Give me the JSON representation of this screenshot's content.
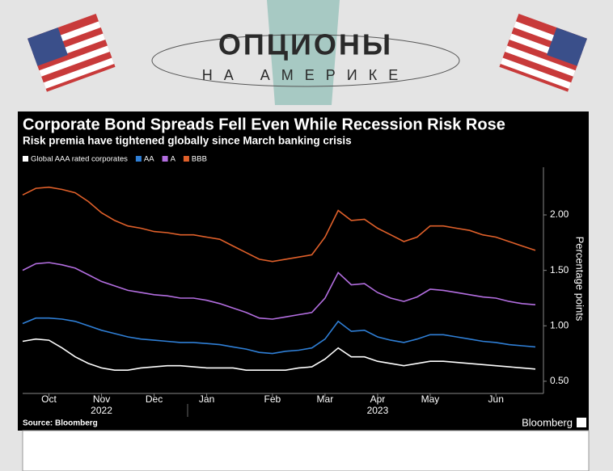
{
  "header": {
    "title": "ОПЦИОНЫ",
    "subtitle": "НА АМЕРИКЕ"
  },
  "chart_data": {
    "type": "line",
    "title": "Corporate Bond Spreads Fell Even While Recession Risk Rose",
    "subtitle": "Risk premia have tightened globally since March banking crisis",
    "y_label": "Percentage points",
    "source": "Source: Bloomberg",
    "brand": "Bloomberg",
    "years": [
      "2022",
      "2023"
    ],
    "categories": [
      null,
      null,
      "Oct",
      null,
      null,
      null,
      "Nov",
      null,
      null,
      null,
      "Dec",
      null,
      null,
      null,
      "Jan",
      null,
      null,
      null,
      null,
      "Feb",
      null,
      null,
      null,
      "Mar",
      null,
      null,
      null,
      "Apr",
      null,
      null,
      null,
      "May",
      null,
      null,
      null,
      null,
      "Jun",
      null,
      null,
      null
    ],
    "series": [
      {
        "name": "Global AAA rated corporates",
        "color": "#ffffff",
        "values": [
          0.86,
          0.88,
          0.87,
          0.8,
          0.72,
          0.66,
          0.62,
          0.6,
          0.6,
          0.62,
          0.63,
          0.64,
          0.64,
          0.63,
          0.62,
          0.62,
          0.62,
          0.6,
          0.6,
          0.6,
          0.6,
          0.62,
          0.63,
          0.7,
          0.8,
          0.72,
          0.72,
          0.68,
          0.66,
          0.64,
          0.66,
          0.68,
          0.68,
          0.67,
          0.66,
          0.65,
          0.64,
          0.63,
          0.62,
          0.61
        ]
      },
      {
        "name": "AA",
        "color": "#2f7fd6",
        "values": [
          1.02,
          1.07,
          1.07,
          1.06,
          1.04,
          1.0,
          0.96,
          0.93,
          0.9,
          0.88,
          0.87,
          0.86,
          0.85,
          0.85,
          0.84,
          0.83,
          0.81,
          0.79,
          0.76,
          0.75,
          0.77,
          0.78,
          0.8,
          0.88,
          1.04,
          0.95,
          0.96,
          0.9,
          0.87,
          0.85,
          0.88,
          0.92,
          0.92,
          0.9,
          0.88,
          0.86,
          0.85,
          0.83,
          0.82,
          0.81
        ]
      },
      {
        "name": "A",
        "color": "#b36ee0",
        "values": [
          1.5,
          1.56,
          1.57,
          1.55,
          1.52,
          1.46,
          1.4,
          1.36,
          1.32,
          1.3,
          1.28,
          1.27,
          1.25,
          1.25,
          1.23,
          1.2,
          1.16,
          1.12,
          1.07,
          1.06,
          1.08,
          1.1,
          1.12,
          1.25,
          1.48,
          1.37,
          1.38,
          1.3,
          1.25,
          1.22,
          1.26,
          1.33,
          1.32,
          1.3,
          1.28,
          1.26,
          1.25,
          1.22,
          1.2,
          1.19
        ]
      },
      {
        "name": "BBB",
        "color": "#e0602a",
        "values": [
          2.18,
          2.24,
          2.25,
          2.23,
          2.2,
          2.12,
          2.02,
          1.95,
          1.9,
          1.88,
          1.85,
          1.84,
          1.82,
          1.82,
          1.8,
          1.78,
          1.72,
          1.66,
          1.6,
          1.58,
          1.6,
          1.62,
          1.64,
          1.8,
          2.04,
          1.95,
          1.96,
          1.88,
          1.82,
          1.76,
          1.8,
          1.9,
          1.9,
          1.88,
          1.86,
          1.82,
          1.8,
          1.76,
          1.72,
          1.68
        ]
      }
    ],
    "ylim": [
      0.39,
      2.43
    ],
    "yticks": [
      {
        "value": 0.5,
        "label": "0.50"
      },
      {
        "value": 1,
        "label": "1.00"
      },
      {
        "value": 1.5,
        "label": "1.50"
      },
      {
        "value": 2,
        "label": "2.00"
      }
    ],
    "grid": false
  }
}
